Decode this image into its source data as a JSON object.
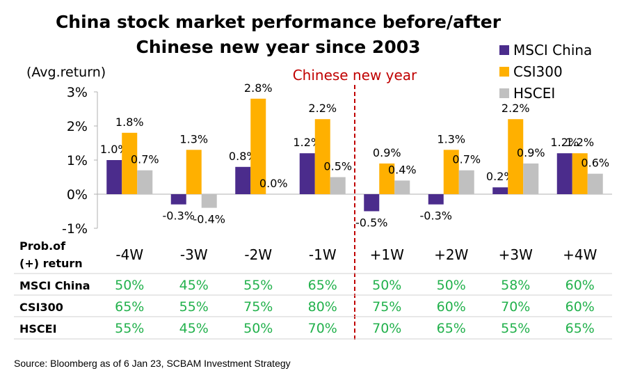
{
  "chart_data": {
    "type": "bar",
    "title": "China stock market performance before/after Chinese new year since 2003",
    "title_lines": [
      "China stock market performance before/after",
      "Chinese new year since 2003"
    ],
    "ylabel": "(Avg.return)",
    "ylim": [
      -1,
      3
    ],
    "yticks": [
      "3%",
      "2%",
      "1%",
      "0%",
      "-1%"
    ],
    "categories": [
      "-4W",
      "-3W",
      "-2W",
      "-1W",
      "+1W",
      "+2W",
      "+3W",
      "+4W"
    ],
    "series": [
      {
        "name": "MSCI China",
        "color": "#4b2c8c",
        "values": [
          1.0,
          -0.3,
          0.8,
          1.2,
          -0.5,
          -0.3,
          0.2,
          1.2
        ],
        "labels": [
          "1.0%",
          "-0.3%",
          "0.8%",
          "1.2%",
          "-0.5%",
          "-0.3%",
          "0.2%",
          "1.2%"
        ]
      },
      {
        "name": "CSI300",
        "color": "#ffb000",
        "values": [
          1.8,
          1.3,
          2.8,
          2.2,
          0.9,
          1.3,
          2.2,
          1.2
        ],
        "labels": [
          "1.8%",
          "1.3%",
          "2.8%",
          "2.2%",
          "0.9%",
          "1.3%",
          "2.2%",
          "1.2%"
        ]
      },
      {
        "name": "HSCEI",
        "color": "#c0c0c0",
        "values": [
          0.7,
          -0.4,
          0.0,
          0.5,
          0.4,
          0.7,
          0.9,
          0.6
        ],
        "labels": [
          "0.7%",
          "-0.4%",
          "0.0%",
          "0.5%",
          "0.4%",
          "0.7%",
          "0.9%",
          "0.6%"
        ]
      }
    ],
    "annotation": "Chinese new year",
    "legend_position": "top-right",
    "grid": false,
    "table": {
      "header_label": [
        "Prob.of",
        "(+) return"
      ],
      "rows": [
        {
          "label": "MSCI China",
          "values": [
            "50%",
            "45%",
            "55%",
            "65%",
            "50%",
            "50%",
            "58%",
            "60%"
          ]
        },
        {
          "label": "CSI300",
          "values": [
            "65%",
            "55%",
            "75%",
            "80%",
            "75%",
            "60%",
            "70%",
            "60%"
          ]
        },
        {
          "label": "HSCEI",
          "values": [
            "55%",
            "45%",
            "50%",
            "70%",
            "70%",
            "65%",
            "55%",
            "65%"
          ]
        }
      ]
    },
    "source": "Source: Bloomberg as of 6 Jan 23, SCBAM Investment Strategy"
  }
}
